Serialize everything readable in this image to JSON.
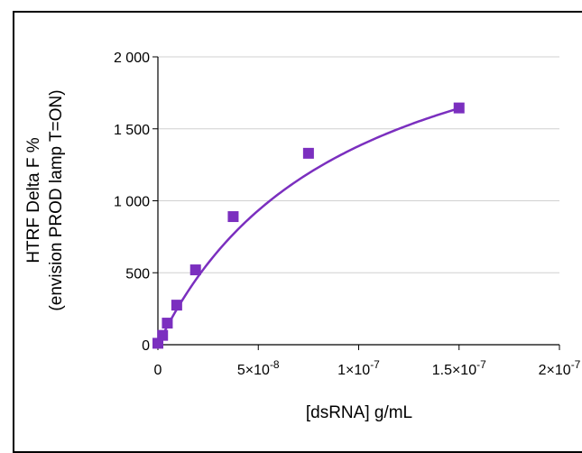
{
  "chart_data": {
    "type": "scatter",
    "title": "",
    "xlabel": "[dsRNA] g/mL",
    "ylabel_line1": "HTRF Delta F %",
    "ylabel_line2": "(envision PROD lamp T=ON)",
    "xlim": [
      0,
      2e-07
    ],
    "ylim": [
      0,
      2000
    ],
    "x_ticks": [
      {
        "value": 0,
        "mant": "0",
        "exp": ""
      },
      {
        "value": 5e-08,
        "mant": "5×10",
        "exp": "-8"
      },
      {
        "value": 1e-07,
        "mant": "1×10",
        "exp": "-7"
      },
      {
        "value": 1.5e-07,
        "mant": "1.5×10",
        "exp": "-7"
      },
      {
        "value": 2e-07,
        "mant": "2×10",
        "exp": "-7"
      }
    ],
    "y_ticks": [
      {
        "value": 0,
        "label": "0"
      },
      {
        "value": 500,
        "label": "500"
      },
      {
        "value": 1000,
        "label": "1 000"
      },
      {
        "value": 1500,
        "label": "1 500"
      },
      {
        "value": 2000,
        "label": "2 000"
      }
    ],
    "grid": "horizontal",
    "series": [
      {
        "color": "#7b2fbf",
        "marker": "square",
        "points": [
          [
            0,
            10
          ],
          [
            2.34e-09,
            65
          ],
          [
            4.69e-09,
            150
          ],
          [
            9.38e-09,
            275
          ],
          [
            1.875e-08,
            520
          ],
          [
            3.75e-08,
            890
          ],
          [
            7.5e-08,
            1330
          ],
          [
            1.5e-07,
            1645
          ]
        ],
        "fit": "hyperbolic"
      }
    ]
  }
}
